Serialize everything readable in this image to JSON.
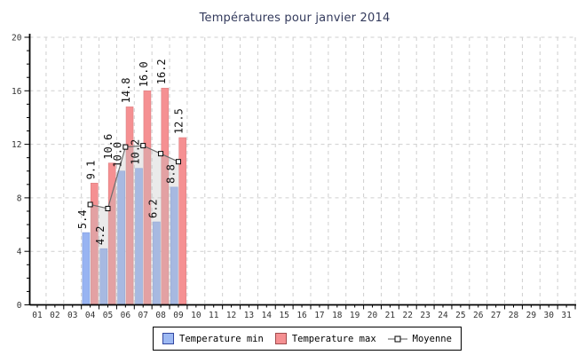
{
  "chart_data": {
    "type": "bar",
    "title": "Températures pour janvier 2014",
    "title_color": "#333A5C",
    "x_categories": [
      "01",
      "02",
      "03",
      "04",
      "05",
      "06",
      "07",
      "08",
      "09",
      "10",
      "11",
      "12",
      "13",
      "14",
      "15",
      "16",
      "17",
      "18",
      "19",
      "20",
      "21",
      "22",
      "23",
      "24",
      "25",
      "26",
      "27",
      "28",
      "29",
      "30",
      "31"
    ],
    "data_days": [
      4,
      5,
      6,
      7,
      8,
      9
    ],
    "series": [
      {
        "name": "Temperature min",
        "type": "bar",
        "color": "#98B4F2",
        "border": "#7D9BDD",
        "values": [
          5.4,
          4.2,
          10.0,
          10.2,
          6.2,
          8.8
        ]
      },
      {
        "name": "Temperature max",
        "type": "bar",
        "color": "#F59092",
        "border": "#DD7F82",
        "values": [
          9.1,
          10.6,
          14.8,
          16.0,
          16.2,
          12.5
        ]
      },
      {
        "name": "Moyenne",
        "type": "line",
        "color": "#6E6E6E",
        "marker": "square",
        "values": [
          7.5,
          7.2,
          11.8,
          11.9,
          11.3,
          10.7
        ]
      }
    ],
    "value_labels_min": [
      "5.4",
      "4.2",
      "10.0",
      "10.2",
      "6.2",
      "8.8"
    ],
    "value_labels_max": [
      "9.1",
      "10.6",
      "14.8",
      "16.0",
      "16.2",
      "12.5"
    ],
    "ylim": [
      0,
      20
    ],
    "yticks": [
      0,
      4,
      8,
      12,
      16,
      20
    ],
    "y_minor_step": 1,
    "grid": true,
    "gridline_color": "#CFCFCF",
    "area_fill": "rgba(195,195,195,0.35)",
    "axis_color": "#000000",
    "tick_label_color": "#333333",
    "legend_position": "bottom"
  },
  "legend": {
    "min_label": "Temperature min",
    "max_label": "Temperature max",
    "moyenne_label": "Moyenne"
  }
}
